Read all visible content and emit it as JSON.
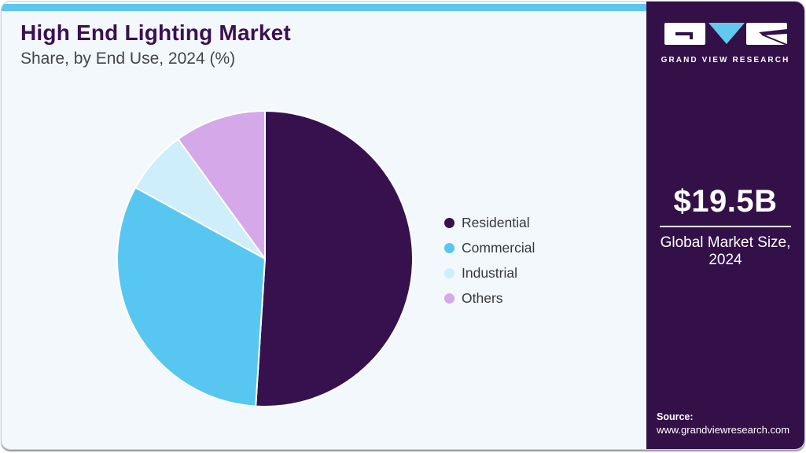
{
  "header": {
    "title": "High End Lighting Market",
    "subtitle": "Share, by End Use, 2024 (%)"
  },
  "chart_data": {
    "type": "pie",
    "title": "High End Lighting Market Share, by End Use, 2024 (%)",
    "categories": [
      "Residential",
      "Commercial",
      "Industrial",
      "Others"
    ],
    "values": [
      51,
      32,
      7,
      10
    ],
    "units": "%",
    "colors": [
      "#37114e",
      "#57c7f2",
      "#cdeefa",
      "#d4a8e9"
    ],
    "start_angle": "12 o'clock",
    "direction": "clockwise",
    "legend_position": "right",
    "data_labels_shown": false
  },
  "sidebar": {
    "brand": "GRAND VIEW RESEARCH",
    "market_size_value": "$19.5B",
    "market_size_caption_line1": "Global Market Size,",
    "market_size_caption_line2": "2024",
    "source_label": "Source:",
    "source_url": "www.grandviewresearch.com"
  },
  "theme": {
    "accent_bar": "#5ec6f0",
    "card_background": "#f3f8fc",
    "sidebar_background": "#341049",
    "title_color": "#3b1050",
    "logo_triangle": "#62c9ed"
  }
}
